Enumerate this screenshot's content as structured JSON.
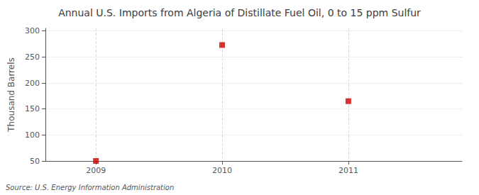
{
  "chart_data": {
    "type": "scatter",
    "title": "Annual U.S. Imports from Algeria of Distillate Fuel Oil, 0 to 15 ppm Sulfur",
    "ylabel": "Thousand Barrels",
    "source": "Source: U.S. Energy Information Administration",
    "x": [
      2009,
      2010,
      2011
    ],
    "values": [
      50,
      273,
      165
    ],
    "color": "#cc0000",
    "marker": "square",
    "xlim": [
      2008.6,
      2011.9
    ],
    "ylim": [
      50,
      305
    ],
    "xticks": [
      2009,
      2010,
      2011
    ],
    "yticks": [
      50,
      100,
      150,
      200,
      250,
      300
    ],
    "grid": true
  }
}
